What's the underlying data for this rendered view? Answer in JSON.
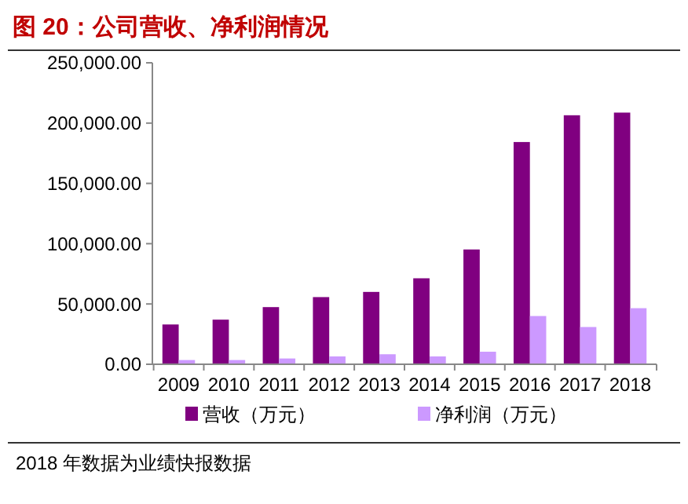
{
  "chart_data": {
    "type": "bar",
    "title": "图 20：公司营收、净利润情况",
    "categories": [
      "2009",
      "2010",
      "2011",
      "2012",
      "2013",
      "2014",
      "2015",
      "2016",
      "2017",
      "2018"
    ],
    "series": [
      {
        "name": "营收（万元）",
        "color": "#800080",
        "values": [
          33000,
          37000,
          47400,
          55700,
          60000,
          71300,
          95200,
          184300,
          206500,
          208700
        ]
      },
      {
        "name": "净利润（万元）",
        "color": "#cc99ff",
        "values": [
          3500,
          3500,
          4800,
          6500,
          8300,
          6500,
          10400,
          40000,
          30900,
          46500
        ]
      }
    ],
    "ylim": [
      0,
      250000
    ],
    "yticks": [
      {
        "value": 0,
        "label": "0.00"
      },
      {
        "value": 50000,
        "label": "50,000.00"
      },
      {
        "value": 100000,
        "label": "100,000.00"
      },
      {
        "value": 150000,
        "label": "150,000.00"
      },
      {
        "value": 200000,
        "label": "200,000.00"
      },
      {
        "value": 250000,
        "label": "250,000.00"
      }
    ],
    "legend": "bottom",
    "annotations": [
      "2018 年数据为业绩快报数据"
    ]
  }
}
